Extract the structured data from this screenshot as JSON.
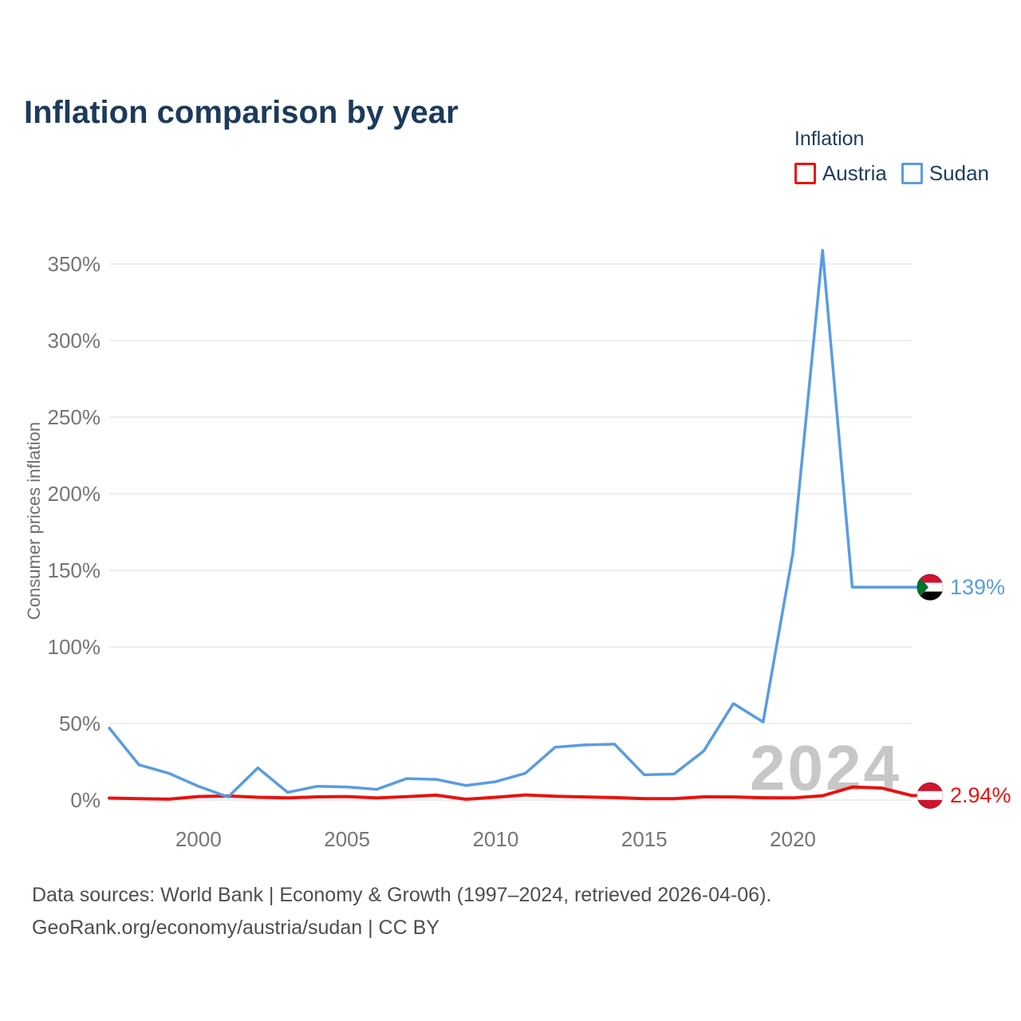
{
  "page": {
    "title": "Inflation comparison by year",
    "watermark": "2024",
    "footer_line1": "Data sources: World Bank | Economy & Growth (1997–2024, retrieved 2026-04-06).",
    "footer_line2": "GeoRank.org/economy/austria/sudan | CC BY"
  },
  "legend": {
    "title": "Inflation",
    "items": [
      {
        "label": "Austria",
        "color": "#e9120e"
      },
      {
        "label": "Sudan",
        "color": "#589ce2"
      }
    ]
  },
  "icons": {
    "sudan-flag": {
      "colors": [
        "#d21034",
        "#ffffff",
        "#000000",
        "#007229"
      ]
    },
    "austria-flag": {
      "colors": [
        "#cf142b",
        "#ffffff",
        "#cf142b"
      ]
    }
  },
  "chart_data": {
    "type": "line",
    "title": "Inflation comparison by year",
    "xlabel": "",
    "ylabel": "Consumer prices inflation",
    "grid": "horizontal",
    "legend_position": "top-right",
    "ylim": [
      0,
      365
    ],
    "xticks": [
      2000,
      2005,
      2010,
      2015,
      2020
    ],
    "yticks_percent": [
      0,
      50,
      100,
      150,
      200,
      250,
      300,
      350
    ],
    "x": [
      1997,
      1998,
      1999,
      2000,
      2001,
      2002,
      2003,
      2004,
      2005,
      2006,
      2007,
      2008,
      2009,
      2010,
      2011,
      2012,
      2013,
      2014,
      2015,
      2016,
      2017,
      2018,
      2019,
      2020,
      2021,
      2022,
      2023,
      2024
    ],
    "series": [
      {
        "name": "Austria",
        "color": "#e9120e",
        "flag": "austria-flag",
        "end_label": "2.94%",
        "values": [
          1.3,
          0.9,
          0.6,
          2.3,
          2.7,
          1.8,
          1.4,
          2.1,
          2.3,
          1.4,
          2.2,
          3.2,
          0.5,
          1.8,
          3.3,
          2.5,
          2.0,
          1.6,
          0.9,
          0.9,
          2.1,
          2.0,
          1.5,
          1.4,
          2.8,
          8.5,
          7.8,
          2.94
        ]
      },
      {
        "name": "Sudan",
        "color": "#589ce2",
        "flag": "sudan-flag",
        "end_label": "139%",
        "values": [
          47,
          23,
          17.5,
          9,
          2,
          21,
          5,
          9,
          8.5,
          7,
          14,
          13.5,
          9.5,
          12,
          17.5,
          34.5,
          36,
          36.5,
          16.5,
          17,
          32,
          63,
          51,
          161,
          359,
          139,
          139,
          139
        ]
      }
    ]
  }
}
